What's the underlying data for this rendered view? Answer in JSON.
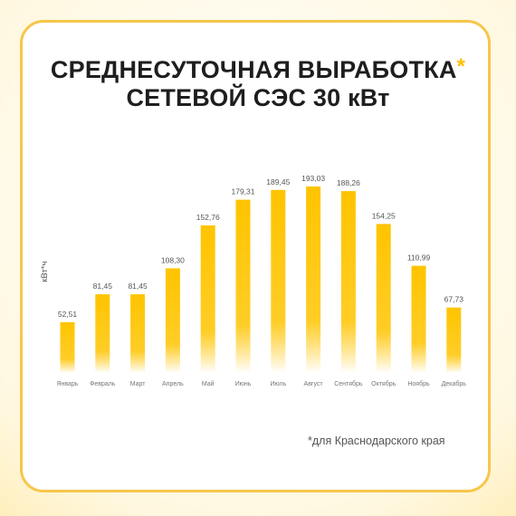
{
  "title": {
    "line1": "СРЕДНЕСУТОЧНАЯ ВЫРАБОТКА",
    "star": "*",
    "line2": "СЕТЕВОЙ СЭС 30 кВт"
  },
  "footnote": "*для Краснодарского края",
  "colors": {
    "bar_top": "#ffc400",
    "bar_bottom": "#ffffff",
    "frame": "#f7c64a",
    "text": "#1e1e1e"
  },
  "chart_data": {
    "type": "bar",
    "ylabel": "кВт*ч",
    "xlabel": "",
    "ylim": [
      0,
      200
    ],
    "grid": false,
    "categories": [
      "Январь",
      "Февраль",
      "Март",
      "Апрель",
      "Май",
      "Июнь",
      "Июль",
      "Август",
      "Сентябрь",
      "Октябрь",
      "Ноябрь",
      "Декабрь"
    ],
    "values": [
      52.51,
      81.45,
      81.45,
      108.3,
      152.76,
      179.31,
      189.45,
      193.03,
      188.26,
      154.25,
      110.99,
      67.73
    ],
    "value_labels": [
      "52,51",
      "81,45",
      "81,45",
      "108,30",
      "152,76",
      "179,31",
      "189,45",
      "193,03",
      "188,26",
      "154,25",
      "110,99",
      "67,73"
    ]
  }
}
